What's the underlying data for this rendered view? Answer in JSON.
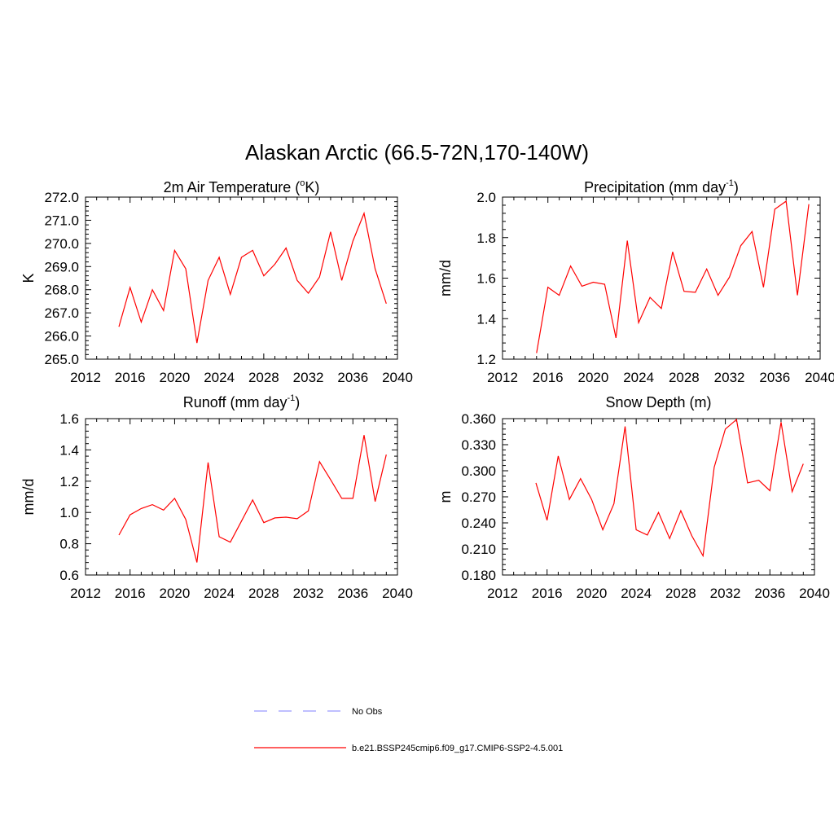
{
  "figure": {
    "title": "Alaskan Arctic (66.5-72N,170-140W)"
  },
  "colors": {
    "model_line": "#ff0000",
    "obs_line": "#9999ff",
    "axis": "#000000"
  },
  "chart_data": [
    {
      "type": "line",
      "title": "2m Air Temperature (",
      "title_sup": "o",
      "title_after": "K)",
      "ylabel": "K",
      "xlim": [
        2012,
        2040
      ],
      "xticks": [
        2012,
        2016,
        2020,
        2024,
        2028,
        2032,
        2036,
        2040
      ],
      "ylim": [
        265.0,
        272.0
      ],
      "yticks": [
        "265.0",
        "266.0",
        "267.0",
        "268.0",
        "269.0",
        "270.0",
        "271.0",
        "272.0"
      ],
      "x": [
        2015,
        2016,
        2017,
        2018,
        2019,
        2020,
        2021,
        2022,
        2023,
        2024,
        2025,
        2026,
        2027,
        2028,
        2029,
        2030,
        2031,
        2032,
        2033,
        2034,
        2035,
        2036,
        2037,
        2038,
        2039
      ],
      "series": [
        {
          "values": [
            266.4,
            268.1,
            266.6,
            268.0,
            267.1,
            269.7,
            268.9,
            265.7,
            268.4,
            269.4,
            267.8,
            269.4,
            269.7,
            268.6,
            269.1,
            269.8,
            268.4,
            267.85,
            268.55,
            270.5,
            268.4,
            270.1,
            271.3,
            268.9,
            267.4
          ]
        }
      ]
    },
    {
      "type": "line",
      "title": "Precipitation (mm day",
      "title_sup": "-1",
      "title_after": ")",
      "ylabel": "mm/d",
      "xlim": [
        2012,
        2040
      ],
      "xticks": [
        2012,
        2016,
        2020,
        2024,
        2028,
        2032,
        2036,
        2040
      ],
      "ylim": [
        1.2,
        2.0
      ],
      "yticks": [
        "1.2",
        "1.4",
        "1.6",
        "1.8",
        "2.0"
      ],
      "x": [
        2015,
        2016,
        2017,
        2018,
        2019,
        2020,
        2021,
        2022,
        2023,
        2024,
        2025,
        2026,
        2027,
        2028,
        2029,
        2030,
        2031,
        2032,
        2033,
        2034,
        2035,
        2036,
        2037,
        2038,
        2039
      ],
      "series": [
        {
          "values": [
            1.23,
            1.555,
            1.515,
            1.66,
            1.56,
            1.58,
            1.57,
            1.305,
            1.785,
            1.38,
            1.505,
            1.45,
            1.73,
            1.535,
            1.53,
            1.645,
            1.515,
            1.605,
            1.76,
            1.83,
            1.555,
            1.94,
            1.98,
            1.515,
            1.965
          ]
        }
      ]
    },
    {
      "type": "line",
      "title": "Runoff (mm day",
      "title_sup": "-1",
      "title_after": ")",
      "ylabel": "mm/d",
      "xlim": [
        2012,
        2040
      ],
      "xticks": [
        2012,
        2016,
        2020,
        2024,
        2028,
        2032,
        2036,
        2040
      ],
      "ylim": [
        0.6,
        1.6
      ],
      "yticks": [
        "0.6",
        "0.8",
        "1.0",
        "1.2",
        "1.4",
        "1.6"
      ],
      "x": [
        2015,
        2016,
        2017,
        2018,
        2019,
        2020,
        2021,
        2022,
        2023,
        2024,
        2025,
        2026,
        2027,
        2028,
        2029,
        2030,
        2031,
        2032,
        2033,
        2034,
        2035,
        2036,
        2037,
        2038,
        2039
      ],
      "series": [
        {
          "values": [
            0.855,
            0.985,
            1.025,
            1.05,
            1.015,
            1.09,
            0.955,
            0.68,
            1.32,
            0.845,
            0.81,
            0.945,
            1.08,
            0.935,
            0.965,
            0.97,
            0.96,
            1.01,
            1.325,
            1.21,
            1.09,
            1.09,
            1.495,
            1.07,
            1.37
          ]
        }
      ]
    },
    {
      "type": "line",
      "title": "Snow Depth (m)",
      "title_sup": "",
      "title_after": "",
      "ylabel": "m",
      "xlim": [
        2012,
        2040
      ],
      "xticks": [
        2012,
        2016,
        2020,
        2024,
        2028,
        2032,
        2036,
        2040
      ],
      "ylim": [
        0.18,
        0.36
      ],
      "yticks": [
        "0.180",
        "0.210",
        "0.240",
        "0.270",
        "0.300",
        "0.330",
        "0.360"
      ],
      "x": [
        2015,
        2016,
        2017,
        2018,
        2019,
        2020,
        2021,
        2022,
        2023,
        2024,
        2025,
        2026,
        2027,
        2028,
        2029,
        2030,
        2031,
        2032,
        2033,
        2034,
        2035,
        2036,
        2037,
        2038,
        2039
      ],
      "series": [
        {
          "values": [
            0.286,
            0.243,
            0.317,
            0.267,
            0.291,
            0.267,
            0.232,
            0.262,
            0.351,
            0.232,
            0.226,
            0.252,
            0.222,
            0.254,
            0.225,
            0.202,
            0.304,
            0.348,
            0.359,
            0.286,
            0.289,
            0.277,
            0.356,
            0.276,
            0.308
          ]
        }
      ]
    }
  ],
  "legend": {
    "items": [
      {
        "label": "No Obs",
        "style": "dashed"
      },
      {
        "label": "b.e21.BSSP245cmip6.f09_g17.CMIP6-SSP2-4.5.001",
        "style": "solid"
      }
    ]
  }
}
